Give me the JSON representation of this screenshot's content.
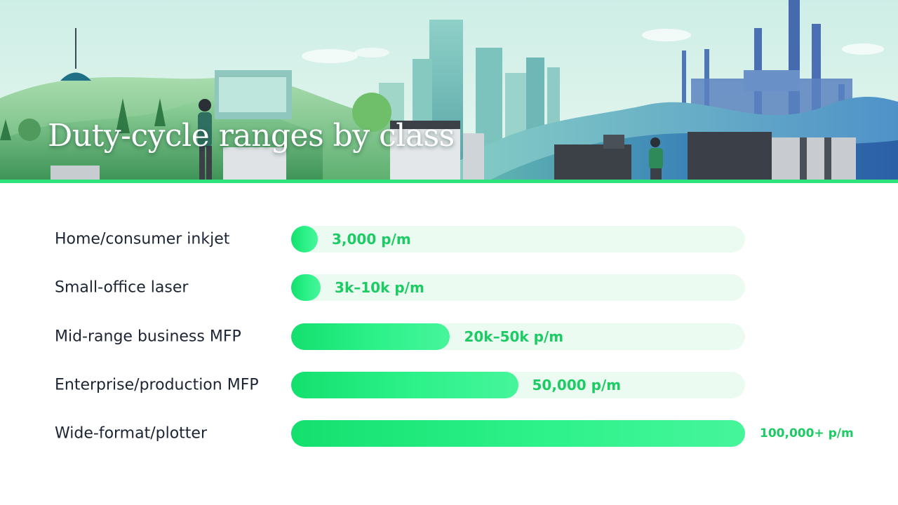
{
  "slide": {
    "title": "Duty-cycle ranges by class"
  },
  "colors": {
    "accent": "#2ee27a",
    "bar_fill": "#1fe477",
    "track": "#ebfbf1",
    "value_text": "#1dcb64",
    "label_text": "#1d2433"
  },
  "chart_data": {
    "type": "bar",
    "orientation": "horizontal",
    "title": "Duty-cycle ranges by class",
    "categories": [
      "Home/consumer inkjet",
      "Small-office laser",
      "Mid-range business MFP",
      "Enterprise/production MFP",
      "Wide-format/plotter"
    ],
    "values": [
      3000,
      6500,
      35000,
      50000,
      100000
    ],
    "value_labels": [
      "3,000 p/m",
      "3k–10k p/m",
      "20k–50k p/m",
      "50,000 p/m",
      "100,000+ p/m"
    ],
    "xlim": [
      0,
      100000
    ],
    "grid": false,
    "legend": "none"
  }
}
